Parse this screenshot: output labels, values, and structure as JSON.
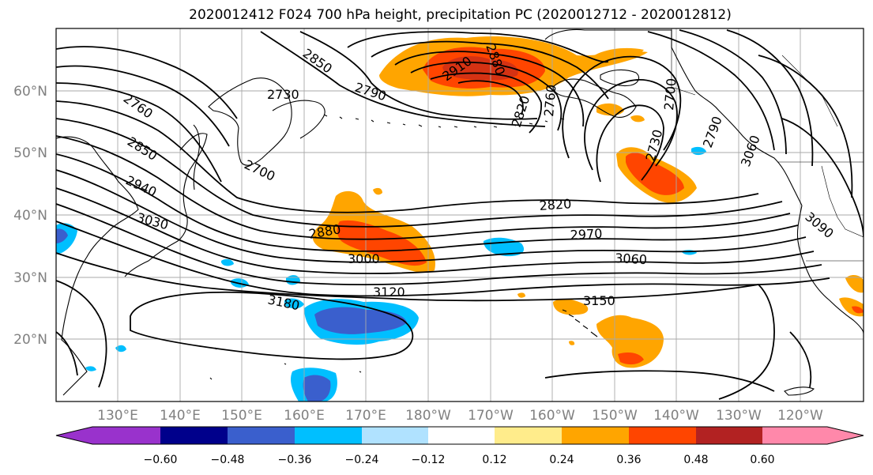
{
  "title": "2020012412 F024 700 hPa height, precipitation PC (2020012712 - 2020012812)",
  "latitude_labels": [
    "60°N",
    "50°N",
    "40°N",
    "30°N",
    "20°N"
  ],
  "longitude_labels": [
    "130°E",
    "140°E",
    "150°E",
    "160°E",
    "170°E",
    "180°W",
    "170°W",
    "160°W",
    "150°W",
    "140°W",
    "130°W",
    "120°W"
  ],
  "contour_labels": [
    "2850",
    "2910",
    "2880",
    "2730",
    "2790",
    "2820",
    "2760",
    "2760",
    "2700",
    "2850",
    "2730",
    "2790",
    "2700",
    "2940",
    "3030",
    "2820",
    "2880",
    "2970",
    "3000",
    "3060",
    "3120",
    "3150",
    "3180",
    "3090",
    "3060"
  ],
  "colorbar": {
    "tick_labels": [
      "−0.60",
      "−0.48",
      "−0.36",
      "−0.24",
      "−0.12",
      "0.12",
      "0.24",
      "0.36",
      "0.48",
      "0.60"
    ],
    "colors": [
      "#9932cc",
      "#00008b",
      "#3a5fcd",
      "#00bfff",
      "#b0e2ff",
      "#ffffff",
      "#ffec8b",
      "#ffa500",
      "#ff4500",
      "#b22222",
      "#ff88aa"
    ]
  }
}
